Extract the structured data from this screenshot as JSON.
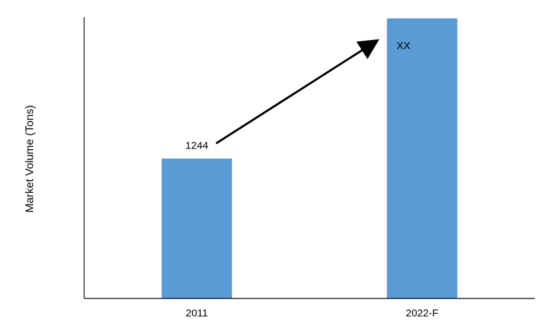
{
  "chart_data": {
    "type": "bar",
    "categories": [
      "2011",
      "2022-F"
    ],
    "values": [
      1244,
      null
    ],
    "data_labels": [
      "1244",
      "XX"
    ],
    "estimated_values": [
      1244,
      2490
    ],
    "ylabel": "Market Volume (Tons)",
    "xlabel": "",
    "ylim": [
      0,
      2500
    ],
    "grid": false,
    "legend": "none",
    "bar_color": "#5b9bd5",
    "annotation": {
      "type": "growth-arrow",
      "from": "2011",
      "to": "2022-F"
    }
  }
}
